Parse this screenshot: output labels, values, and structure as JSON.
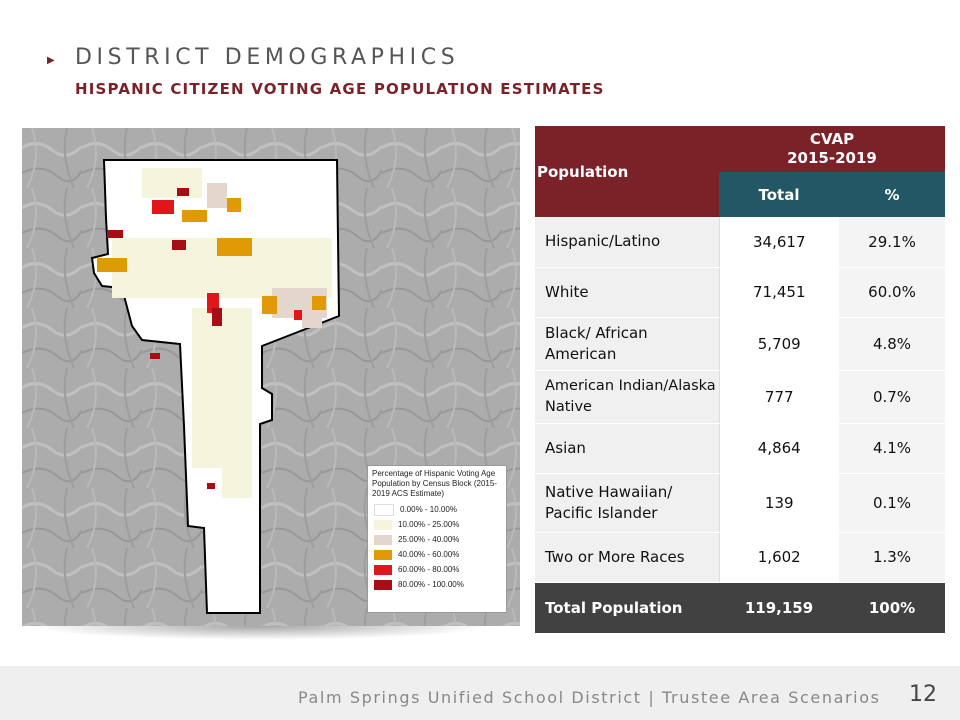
{
  "header": {
    "title": "DISTRICT DEMOGRAPHICS",
    "subtitle": "HISPANIC CITIZEN VOTING AGE POPULATION ESTIMATES"
  },
  "map": {
    "legend_title": "Percentage of Hispanic Voting Age Population by Census Block (2015-2019 ACS Estimate)",
    "legend_items": [
      {
        "label": "0.00% - 10.00%",
        "color": "#ffffff"
      },
      {
        "label": "10.00% - 25.00%",
        "color": "#f4f5dc"
      },
      {
        "label": "25.00% - 40.00%",
        "color": "#e3d6cc"
      },
      {
        "label": "40.00% - 60.00%",
        "color": "#e09a06"
      },
      {
        "label": "60.00% - 80.00%",
        "color": "#e0161b"
      },
      {
        "label": "80.00% - 100.00%",
        "color": "#a40e14"
      }
    ]
  },
  "table": {
    "header_population": "Population",
    "header_cvap_line1": "CVAP",
    "header_cvap_line2": "2015-2019",
    "header_total": "Total",
    "header_pct": "%",
    "rows": [
      {
        "label": "Hispanic/Latino",
        "total": "34,617",
        "pct": "29.1%"
      },
      {
        "label": "White",
        "total": "71,451",
        "pct": "60.0%"
      },
      {
        "label": "Black/ African American",
        "total": "5,709",
        "pct": "4.8%"
      },
      {
        "label": "American Indian/Alaska Native",
        "total": "777",
        "pct": "0.7%"
      },
      {
        "label": "Asian",
        "total": "4,864",
        "pct": "4.1%"
      },
      {
        "label": "Native Hawaiian/ Pacific Islander",
        "total": "139",
        "pct": "0.1%"
      },
      {
        "label": "Two or More Races",
        "total": "1,602",
        "pct": "1.3%"
      }
    ],
    "total_row": {
      "label": "Total Population",
      "total": "119,159",
      "pct": "100%"
    }
  },
  "footer": {
    "text": "Palm Springs Unified School District | Trustee Area Scenarios",
    "page_number": "12"
  },
  "colors": {
    "maroon": "#7b2128",
    "teal": "#225766",
    "dark_gray": "#414141"
  }
}
